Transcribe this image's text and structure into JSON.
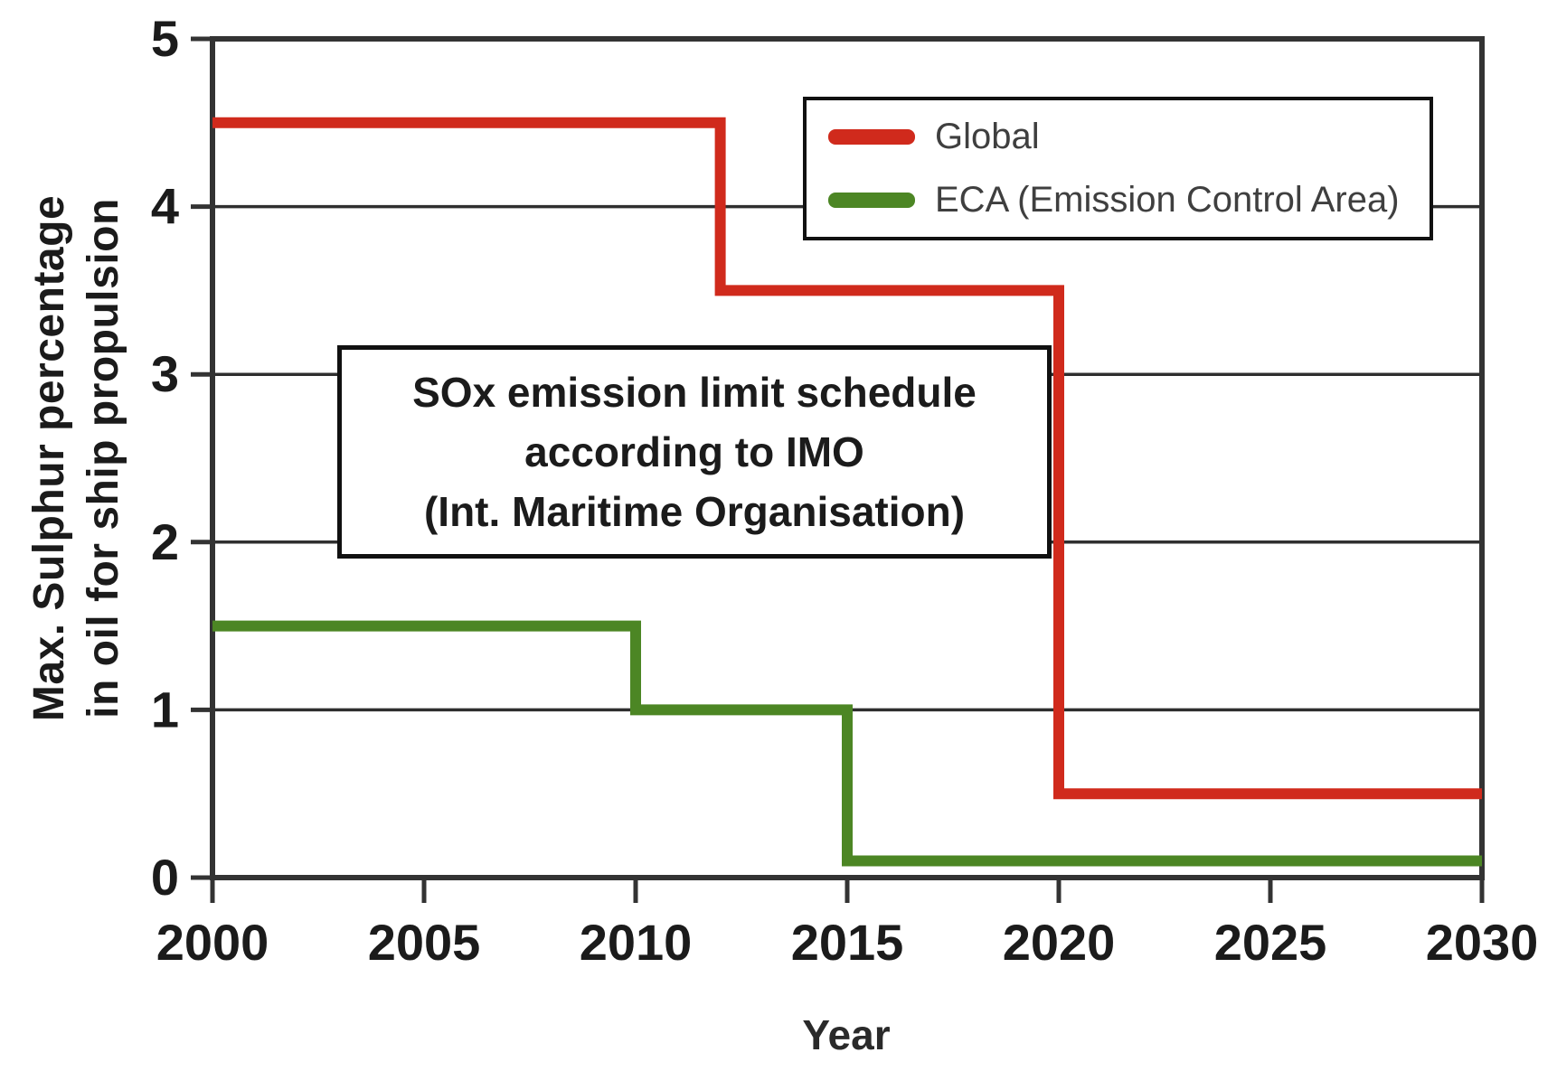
{
  "chart_data": {
    "type": "line",
    "subtype": "step",
    "annotation": {
      "lines": [
        "SOx emission limit schedule",
        "according to IMO",
        "(Int. Maritime Organisation)"
      ]
    },
    "xlabel": "Year",
    "ylabel_lines": [
      "Max. Sulphur percentage",
      "in oil for ship propulsion"
    ],
    "xlim": [
      2000,
      2030
    ],
    "ylim": [
      0,
      5
    ],
    "x_ticks": [
      2000,
      2005,
      2010,
      2015,
      2020,
      2025,
      2030
    ],
    "y_ticks": [
      0,
      1,
      2,
      3,
      4,
      5
    ],
    "grid": "horizontal",
    "legend_position": "top-right",
    "series": [
      {
        "name": "Global",
        "color": "#d02a1c",
        "points": [
          [
            2000,
            4.5
          ],
          [
            2012,
            4.5
          ],
          [
            2012,
            3.5
          ],
          [
            2020,
            3.5
          ],
          [
            2020,
            0.5
          ],
          [
            2030,
            0.5
          ]
        ]
      },
      {
        "name": "ECA (Emission Control Area)",
        "color": "#4c8624",
        "points": [
          [
            2000,
            1.5
          ],
          [
            2010,
            1.5
          ],
          [
            2010,
            1.0
          ],
          [
            2015,
            1.0
          ],
          [
            2015,
            0.1
          ],
          [
            2030,
            0.1
          ]
        ]
      }
    ],
    "colors": {
      "axis": "#333333",
      "grid": "#2f2f2f",
      "tick_text": "#1b1b1b",
      "legend_text": "#3f3f3f"
    }
  }
}
